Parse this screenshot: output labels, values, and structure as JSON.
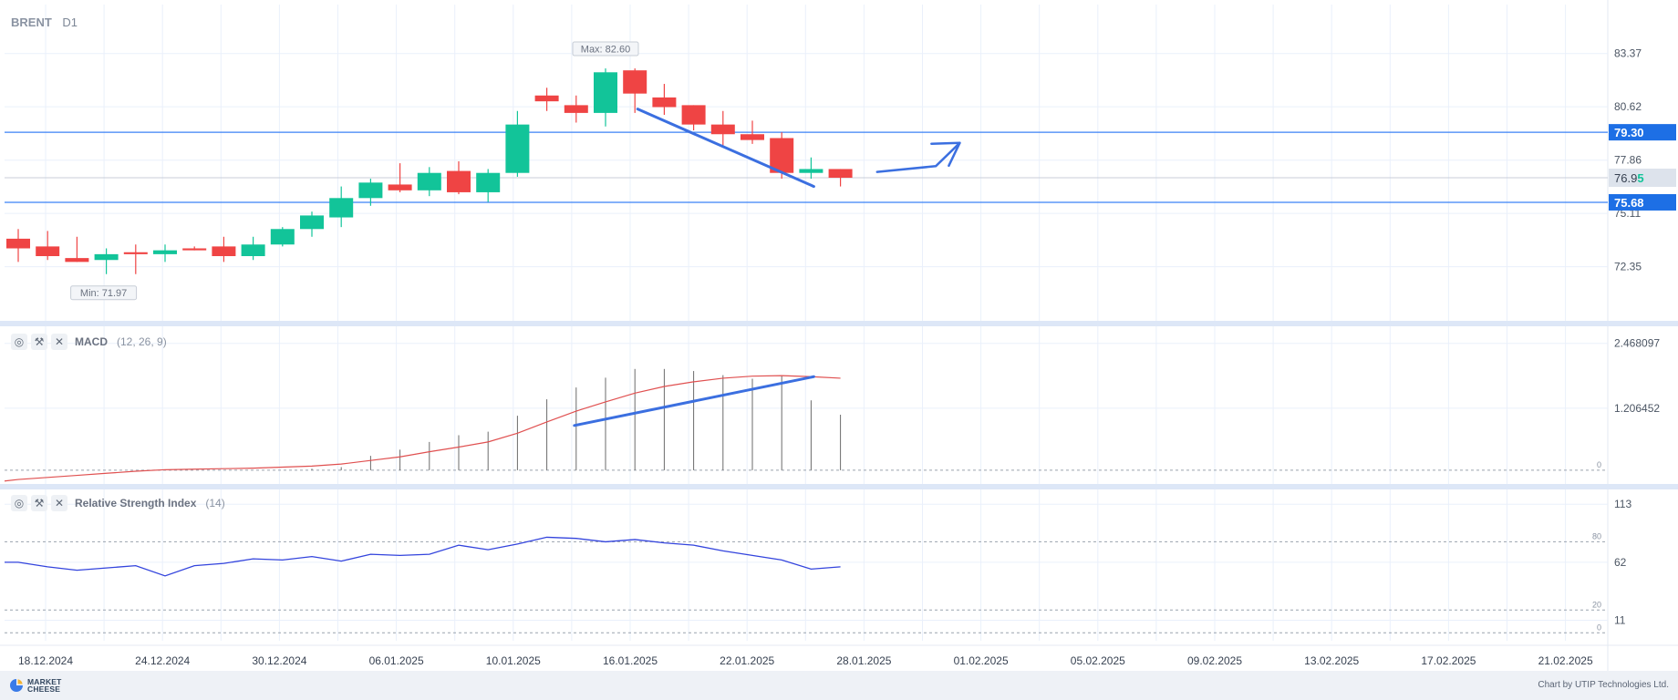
{
  "header": {
    "symbol": "BRENT",
    "timeframe": "D1"
  },
  "indicators": {
    "macd": {
      "name": "MACD",
      "params": "(12, 26, 9)"
    },
    "rsi": {
      "name": "Relative Strength Index",
      "params": "(14)"
    }
  },
  "footer": {
    "logo_line1": "MARKET",
    "logo_line2": "CHEESE",
    "credit": "Chart by UTIP Technologies Ltd."
  },
  "icons": {
    "visibility": "eye-icon",
    "settings": "wrench-icon",
    "remove": "close-icon"
  },
  "colors": {
    "bull": "#12c499",
    "bear": "#ef4444",
    "level_line": "#3b82f6",
    "label_bg": "#1d6fe5",
    "rsi_line": "#3344dd",
    "macd_signal": "#e05050",
    "annotation": "#3b6fe0"
  },
  "chart_data": [
    {
      "type": "candlestick",
      "title": "BRENT D1",
      "y_ticks": [
        83.37,
        80.62,
        77.86,
        75.11,
        72.35
      ],
      "ylim": [
        69.65,
        85.9
      ],
      "x_tick_labels": [
        "18.12.2024",
        "24.12.2024",
        "30.12.2024",
        "06.01.2025",
        "10.01.2025",
        "16.01.2025",
        "22.01.2025",
        "28.01.2025",
        "01.02.2025",
        "05.02.2025",
        "09.02.2025",
        "13.02.2025",
        "17.02.2025",
        "21.02.2025"
      ],
      "current_price": {
        "label_main": "76.9",
        "label_accent": "5",
        "value": 76.95
      },
      "levels": [
        {
          "value": 79.3,
          "label": "79.30"
        },
        {
          "value": 75.68,
          "label": "75.68"
        }
      ],
      "max_label": "Max: 82.60",
      "min_label": "Min: 71.97",
      "candles": [
        {
          "o": 73.8,
          "h": 74.3,
          "l": 72.6,
          "c": 73.3
        },
        {
          "o": 73.4,
          "h": 74.2,
          "l": 72.7,
          "c": 72.9
        },
        {
          "o": 72.8,
          "h": 73.9,
          "l": 72.6,
          "c": 72.6
        },
        {
          "o": 72.7,
          "h": 73.3,
          "l": 71.97,
          "c": 73.0
        },
        {
          "o": 73.1,
          "h": 73.5,
          "l": 71.97,
          "c": 73.0
        },
        {
          "o": 73.0,
          "h": 73.5,
          "l": 72.6,
          "c": 73.2
        },
        {
          "o": 73.3,
          "h": 73.4,
          "l": 73.2,
          "c": 73.2
        },
        {
          "o": 73.4,
          "h": 73.9,
          "l": 72.6,
          "c": 72.9
        },
        {
          "o": 72.9,
          "h": 73.9,
          "l": 72.7,
          "c": 73.5
        },
        {
          "o": 73.5,
          "h": 74.4,
          "l": 73.4,
          "c": 74.3
        },
        {
          "o": 74.3,
          "h": 75.2,
          "l": 73.9,
          "c": 75.0
        },
        {
          "o": 74.9,
          "h": 76.5,
          "l": 74.4,
          "c": 75.9
        },
        {
          "o": 75.9,
          "h": 76.9,
          "l": 75.5,
          "c": 76.7
        },
        {
          "o": 76.6,
          "h": 77.7,
          "l": 76.2,
          "c": 76.3
        },
        {
          "o": 76.3,
          "h": 77.5,
          "l": 76.0,
          "c": 77.2
        },
        {
          "o": 77.3,
          "h": 77.8,
          "l": 76.1,
          "c": 76.2
        },
        {
          "o": 76.2,
          "h": 77.4,
          "l": 75.7,
          "c": 77.2
        },
        {
          "o": 77.2,
          "h": 80.4,
          "l": 77.0,
          "c": 79.7
        },
        {
          "o": 81.2,
          "h": 81.6,
          "l": 80.4,
          "c": 80.9
        },
        {
          "o": 80.7,
          "h": 81.2,
          "l": 79.8,
          "c": 80.3
        },
        {
          "o": 80.3,
          "h": 82.6,
          "l": 79.6,
          "c": 82.4
        },
        {
          "o": 82.5,
          "h": 82.6,
          "l": 80.3,
          "c": 81.3
        },
        {
          "o": 81.1,
          "h": 81.8,
          "l": 80.2,
          "c": 80.6
        },
        {
          "o": 80.7,
          "h": 80.7,
          "l": 79.4,
          "c": 79.7
        },
        {
          "o": 79.7,
          "h": 80.4,
          "l": 78.6,
          "c": 79.2
        },
        {
          "o": 79.2,
          "h": 79.9,
          "l": 78.7,
          "c": 78.9
        },
        {
          "o": 79.0,
          "h": 79.3,
          "l": 76.9,
          "c": 77.2
        },
        {
          "o": 77.2,
          "h": 78.0,
          "l": 76.9,
          "c": 77.4
        },
        {
          "o": 77.4,
          "h": 77.4,
          "l": 76.5,
          "c": 76.95
        }
      ]
    },
    {
      "type": "histogram+line",
      "title": "MACD (12, 26, 9)",
      "y_ticks": [
        "2.468097",
        "1.206452"
      ],
      "y_tick_values": [
        2.468097,
        1.206452
      ],
      "zero_label": "0",
      "ylim": [
        -0.25,
        2.8
      ],
      "histogram": [
        0,
        0,
        0,
        0,
        0,
        0,
        0,
        0,
        0,
        0,
        0.03,
        0.06,
        0.28,
        0.4,
        0.55,
        0.68,
        0.75,
        1.06,
        1.38,
        1.61,
        1.8,
        1.97,
        1.97,
        1.93,
        1.85,
        1.78,
        1.83,
        1.36,
        1.08
      ],
      "signal": [
        -0.18,
        -0.14,
        -0.1,
        -0.06,
        -0.02,
        0.01,
        0.02,
        0.03,
        0.04,
        0.06,
        0.08,
        0.12,
        0.19,
        0.26,
        0.36,
        0.45,
        0.55,
        0.72,
        0.94,
        1.15,
        1.33,
        1.5,
        1.63,
        1.72,
        1.79,
        1.83,
        1.84,
        1.82,
        1.79
      ]
    },
    {
      "type": "line",
      "title": "Relative Strength Index (14)",
      "y_ticks": [
        "113",
        "62",
        "11"
      ],
      "y_tick_values": [
        113,
        62,
        11
      ],
      "guides": [
        {
          "value": 80,
          "label": "80"
        },
        {
          "value": 20,
          "label": "20"
        },
        {
          "value": 0,
          "label": "0"
        }
      ],
      "ylim": [
        -7,
        126
      ],
      "values": [
        62,
        58,
        55,
        57,
        59,
        50,
        59,
        61,
        65,
        64,
        67,
        63,
        69,
        68,
        69,
        77,
        73,
        78,
        84,
        83,
        80,
        82,
        79,
        77,
        72,
        68,
        64,
        56,
        58
      ]
    }
  ]
}
